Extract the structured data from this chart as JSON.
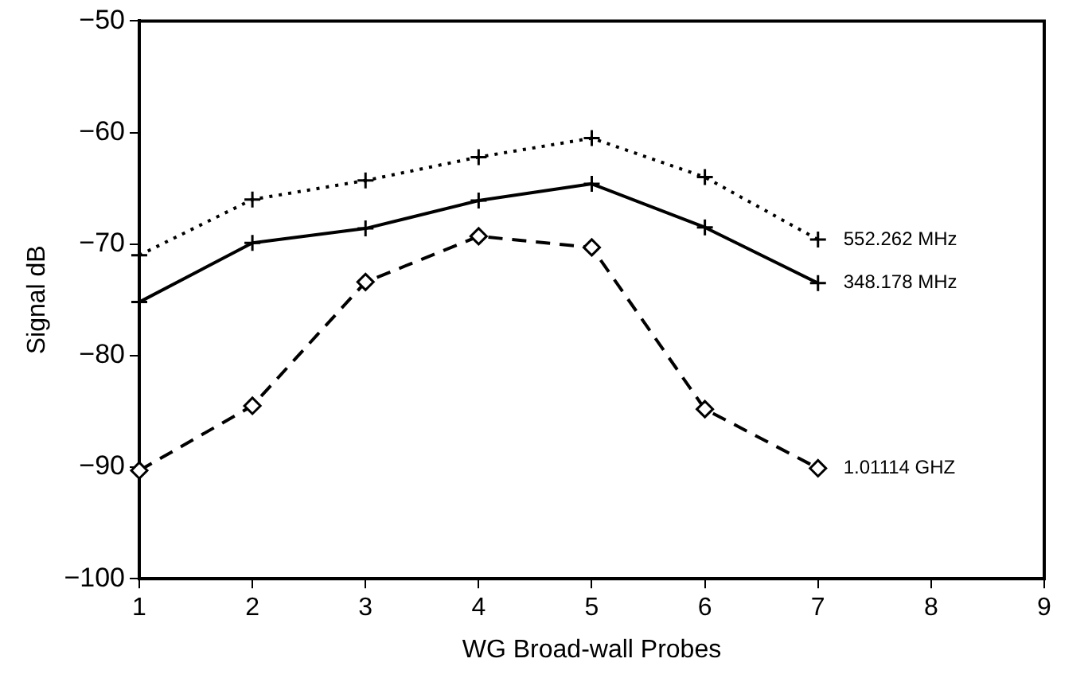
{
  "chart_data": {
    "type": "line",
    "xlabel": "WG Broad-wall Probes",
    "ylabel": "Signal dB",
    "x": [
      1,
      2,
      3,
      4,
      5,
      6,
      7
    ],
    "series": [
      {
        "name": "552.262 MHz",
        "color": "#000000",
        "marker": "cross",
        "line_style": "dotted",
        "values": [
          -71,
          -66,
          -64.3,
          -62.2,
          -60.5,
          -64,
          -69.6
        ]
      },
      {
        "name": "348.178 MHz",
        "color": "#000000",
        "marker": "cross",
        "line_style": "solid",
        "values": [
          -75.2,
          -69.9,
          -68.6,
          -66.1,
          -64.6,
          -68.5,
          -73.5
        ]
      },
      {
        "name": "1.01114 GHZ",
        "color": "#000000",
        "marker": "diamond",
        "line_style": "dashed",
        "values": [
          -90.3,
          -84.5,
          -73.4,
          -69.3,
          -70.3,
          -84.8,
          -90.1
        ]
      }
    ],
    "xlim": [
      1,
      9
    ],
    "xticks": [
      1,
      2,
      3,
      4,
      5,
      6,
      7,
      8,
      9
    ],
    "ylim": [
      -100,
      -50
    ],
    "yticks": [
      -100,
      -90,
      -80,
      -70,
      -60,
      -50
    ],
    "grid": false,
    "legend": false
  }
}
